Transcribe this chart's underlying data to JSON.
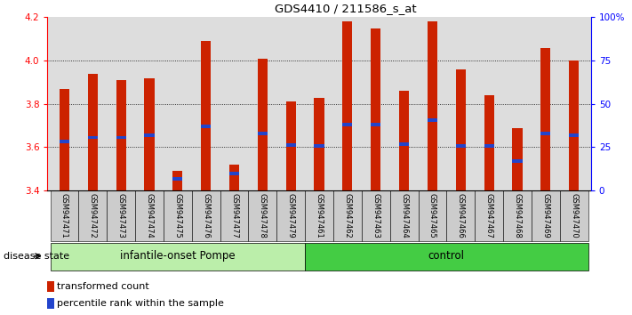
{
  "title": "GDS4410 / 211586_s_at",
  "samples": [
    "GSM947471",
    "GSM947472",
    "GSM947473",
    "GSM947474",
    "GSM947475",
    "GSM947476",
    "GSM947477",
    "GSM947478",
    "GSM947479",
    "GSM947461",
    "GSM947462",
    "GSM947463",
    "GSM947464",
    "GSM947465",
    "GSM947466",
    "GSM947467",
    "GSM947468",
    "GSM947469",
    "GSM947470"
  ],
  "bar_values": [
    3.87,
    3.94,
    3.91,
    3.92,
    3.49,
    4.09,
    3.52,
    4.01,
    3.81,
    3.83,
    4.18,
    4.15,
    3.86,
    4.18,
    3.96,
    3.84,
    3.69,
    4.06,
    4.0
  ],
  "blue_positions": [
    3.625,
    3.645,
    3.645,
    3.655,
    3.455,
    3.695,
    3.48,
    3.665,
    3.61,
    3.605,
    3.705,
    3.705,
    3.615,
    3.725,
    3.605,
    3.605,
    3.535,
    3.665,
    3.655
  ],
  "ymin": 3.4,
  "ymax": 4.2,
  "yticks": [
    3.4,
    3.6,
    3.8,
    4.0,
    4.2
  ],
  "right_ytick_labels": [
    "0",
    "25",
    "50",
    "75",
    "100%"
  ],
  "right_ytick_pct": [
    0,
    25,
    50,
    75,
    100
  ],
  "bar_color": "#cc2200",
  "blue_color": "#2244cc",
  "group1_label": "infantile-onset Pompe",
  "group2_label": "control",
  "group1_n": 9,
  "group2_n": 10,
  "group1_color": "#bbeeaa",
  "group2_color": "#44cc44",
  "disease_state_label": "disease state",
  "legend1": "transformed count",
  "legend2": "percentile rank within the sample",
  "bar_width": 0.35,
  "bg_color": "#ffffff",
  "plot_bg": "#dddddd",
  "label_bg": "#cccccc"
}
